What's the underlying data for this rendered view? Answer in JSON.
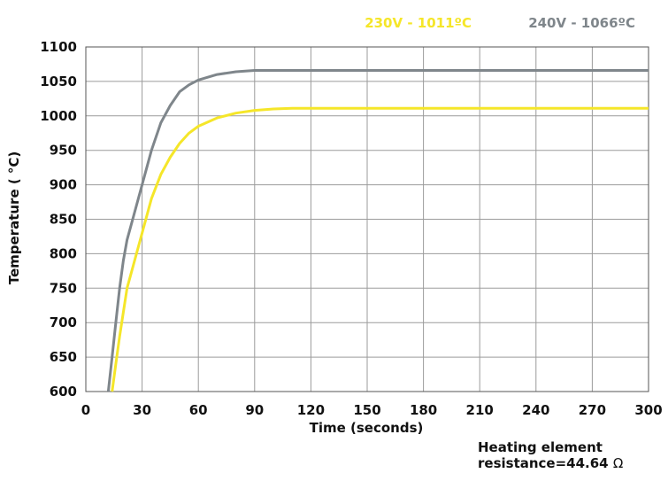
{
  "chart_data": {
    "type": "line",
    "title": "",
    "xlabel": "Time (seconds)",
    "ylabel": "Temperature ( °C)",
    "xlim": [
      0,
      300
    ],
    "ylim": [
      600,
      1100
    ],
    "xticks": [
      0,
      30,
      60,
      90,
      120,
      150,
      180,
      210,
      240,
      270,
      300
    ],
    "yticks": [
      600,
      650,
      700,
      750,
      800,
      850,
      900,
      950,
      1000,
      1050,
      1100
    ],
    "grid": true,
    "legend_position": "top-right",
    "series": [
      {
        "name": "230V - 1011ºC",
        "color": "#f5e629",
        "x": [
          14,
          16,
          18,
          20,
          22,
          25,
          30,
          35,
          40,
          45,
          50,
          55,
          60,
          70,
          80,
          90,
          100,
          110,
          120,
          150,
          200,
          250,
          300
        ],
        "y": [
          600,
          640,
          680,
          715,
          750,
          780,
          830,
          880,
          915,
          940,
          960,
          975,
          985,
          997,
          1004,
          1008,
          1010,
          1011,
          1011,
          1011,
          1011,
          1011,
          1011
        ]
      },
      {
        "name": "240V - 1066ºC",
        "color": "#7f868b",
        "x": [
          12,
          14,
          16,
          18,
          20,
          22,
          25,
          30,
          35,
          40,
          45,
          50,
          55,
          60,
          70,
          80,
          90,
          100,
          110,
          120,
          150,
          200,
          250,
          300
        ],
        "y": [
          600,
          650,
          700,
          750,
          790,
          820,
          850,
          900,
          950,
          990,
          1015,
          1035,
          1045,
          1052,
          1060,
          1064,
          1066,
          1066,
          1066,
          1066,
          1066,
          1066,
          1066,
          1066
        ]
      }
    ]
  },
  "note": {
    "line1": "Heating element",
    "line2": "resistance=44.64",
    "symbol": "Ω"
  }
}
